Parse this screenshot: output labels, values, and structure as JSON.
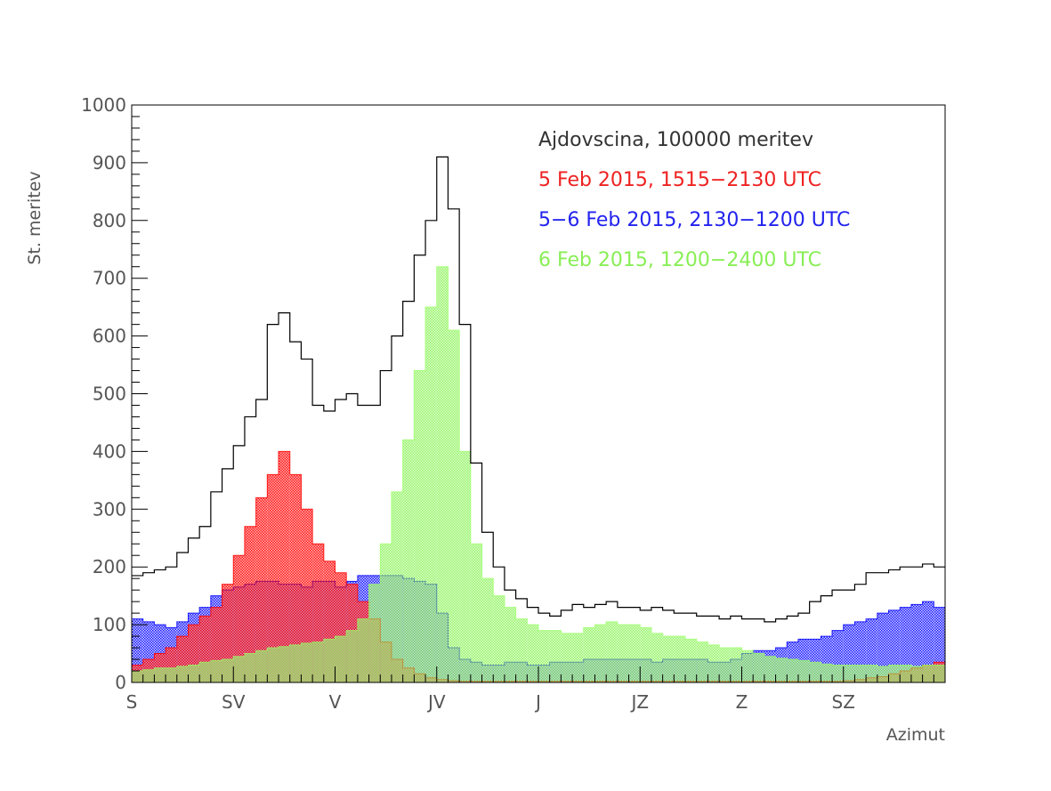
{
  "chart_data": {
    "type": "bar",
    "subtype": "histogram",
    "xlabel": "Azimut",
    "ylabel": "St. meritev",
    "xlim": [
      0,
      360
    ],
    "ylim": [
      0,
      1000
    ],
    "yticks": [
      0,
      100,
      200,
      300,
      400,
      500,
      600,
      700,
      800,
      900,
      1000
    ],
    "xticks": [
      {
        "value": 0,
        "label": "S"
      },
      {
        "value": 45,
        "label": "SV"
      },
      {
        "value": 90,
        "label": "V"
      },
      {
        "value": 135,
        "label": "JV"
      },
      {
        "value": 180,
        "label": "J"
      },
      {
        "value": 225,
        "label": "JZ"
      },
      {
        "value": 270,
        "label": "Z"
      },
      {
        "value": 315,
        "label": "SZ"
      }
    ],
    "grid": false,
    "legend_placement": "top-right",
    "bin_width": 5,
    "series": [
      {
        "name": "Ajdovscina, 100000 meritev",
        "color": "#000000",
        "style": "step-outline",
        "values": [
          185,
          190,
          195,
          200,
          225,
          250,
          270,
          330,
          370,
          410,
          460,
          490,
          620,
          640,
          590,
          560,
          480,
          470,
          490,
          500,
          480,
          480,
          540,
          600,
          660,
          740,
          800,
          910,
          820,
          620,
          380,
          260,
          200,
          160,
          145,
          130,
          120,
          115,
          125,
          135,
          130,
          135,
          140,
          130,
          130,
          125,
          130,
          125,
          120,
          120,
          115,
          115,
          110,
          115,
          110,
          110,
          105,
          110,
          115,
          120,
          140,
          150,
          160,
          160,
          170,
          190,
          190,
          195,
          200,
          200,
          205,
          200
        ]
      },
      {
        "name": "5 Feb 2015, 1515−2130 UTC",
        "color": "#ff0000",
        "style": "hatched-fill",
        "values": [
          30,
          40,
          50,
          60,
          80,
          100,
          115,
          130,
          170,
          220,
          270,
          320,
          360,
          400,
          360,
          300,
          240,
          210,
          190,
          170,
          140,
          110,
          70,
          40,
          25,
          15,
          8,
          5,
          3,
          2,
          2,
          2,
          2,
          2,
          2,
          2,
          2,
          2,
          2,
          2,
          2,
          2,
          2,
          2,
          2,
          2,
          2,
          2,
          2,
          2,
          2,
          2,
          2,
          2,
          2,
          2,
          2,
          2,
          2,
          2,
          2,
          2,
          2,
          3,
          5,
          8,
          10,
          15,
          20,
          25,
          30,
          35
        ]
      },
      {
        "name": "5−6 Feb 2015, 2130−1200 UTC",
        "color": "#0000ff",
        "style": "hatched-fill",
        "values": [
          110,
          105,
          100,
          95,
          105,
          120,
          130,
          150,
          160,
          165,
          170,
          175,
          175,
          170,
          170,
          165,
          175,
          175,
          165,
          175,
          185,
          185,
          185,
          185,
          180,
          175,
          170,
          120,
          60,
          40,
          35,
          30,
          30,
          35,
          35,
          30,
          30,
          35,
          35,
          35,
          40,
          40,
          40,
          40,
          40,
          40,
          35,
          40,
          40,
          40,
          40,
          35,
          35,
          40,
          50,
          55,
          55,
          60,
          70,
          75,
          75,
          80,
          90,
          100,
          105,
          110,
          120,
          125,
          130,
          135,
          140,
          130
        ]
      },
      {
        "name": "6 Feb 2015, 1200−2400 UTC",
        "color": "#99ff66",
        "style": "hatched-fill",
        "values": [
          20,
          22,
          25,
          25,
          28,
          30,
          35,
          38,
          40,
          45,
          50,
          55,
          60,
          62,
          65,
          68,
          70,
          75,
          80,
          90,
          110,
          170,
          240,
          330,
          420,
          540,
          650,
          720,
          610,
          400,
          240,
          180,
          150,
          130,
          110,
          100,
          90,
          90,
          85,
          85,
          95,
          100,
          105,
          100,
          100,
          95,
          85,
          80,
          80,
          75,
          70,
          65,
          60,
          60,
          55,
          50,
          45,
          42,
          40,
          38,
          35,
          32,
          30,
          30,
          30,
          30,
          28,
          30,
          30,
          28,
          30,
          30
        ]
      }
    ]
  }
}
